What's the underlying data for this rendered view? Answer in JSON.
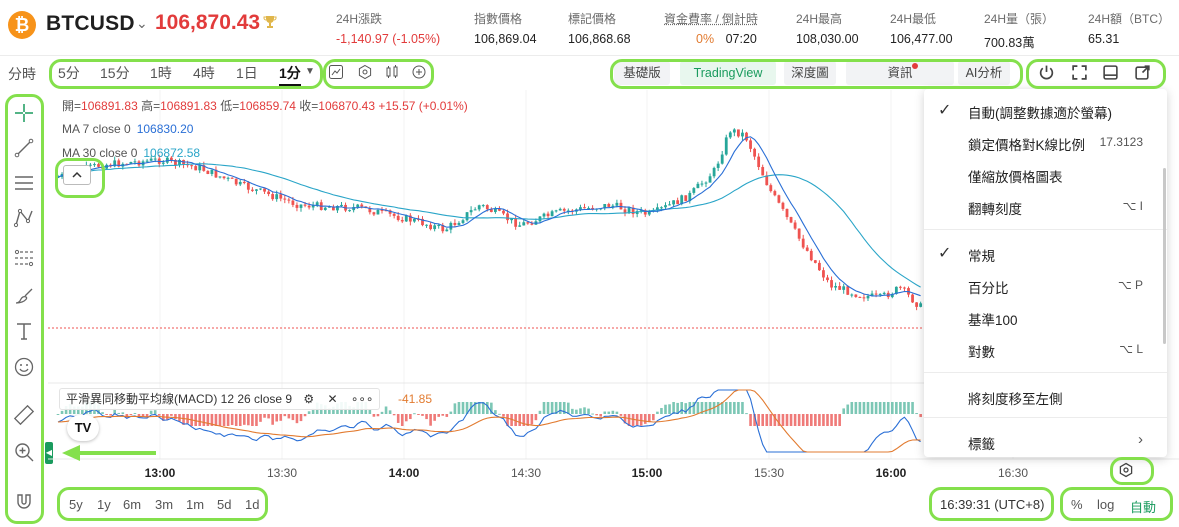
{
  "header": {
    "logo_glyph": "₿",
    "symbol": "BTCUSD",
    "last_price": "106,870.43",
    "stats": [
      {
        "label": "24H漲跌",
        "value": "-1,140.97 (-1.05%)",
        "color": "#e23b3b"
      },
      {
        "label": "指數價格",
        "value": "106,869.04"
      },
      {
        "label": "標記價格",
        "value": "106,868.68"
      },
      {
        "label": "資金費率 / 倒計時",
        "value_a": "0%",
        "value_b": "07:20",
        "color_a": "#e27b30"
      },
      {
        "label": "24H最高",
        "value": "108,030.00"
      },
      {
        "label": "24H最低",
        "value": "106,477.00"
      },
      {
        "label": "24H量（張）",
        "value": "700.83萬"
      },
      {
        "label": "24H額（BTC）",
        "value": "65.31"
      }
    ]
  },
  "toolbar": {
    "timeframe_label": "分時",
    "intervals": [
      "5分",
      "15分",
      "1時",
      "4時",
      "1日",
      "1分"
    ],
    "active_interval": "1分",
    "view_tabs": [
      "基礎版",
      "TradingView",
      "深度圖",
      "資訊",
      "AI分析"
    ],
    "active_view": "TradingView"
  },
  "legend": {
    "ohlc": {
      "open_label": "開=",
      "open": "106891.83",
      "high_label": "高=",
      "high": "106891.83",
      "low_label": "低=",
      "low": "106859.74",
      "close_label": "收=",
      "close": "106870.43",
      "change": "+15.57 (+0.01%)"
    },
    "ma7": {
      "label": "MA 7 close 0",
      "value": "106830.20"
    },
    "ma30": {
      "label": "MA 30 close 0",
      "value": "106872.58"
    }
  },
  "macd": {
    "title": "平滑異同移動平均線(MACD) 12 26 close 9",
    "value": "-41.85",
    "more": "∘∘∘"
  },
  "tv_logo": "TV",
  "time_axis": [
    "13:00",
    "13:30",
    "14:00",
    "14:30",
    "15:00",
    "15:30",
    "16:00",
    "16:30"
  ],
  "time_axis_bold": [
    "13:00",
    "14:00",
    "15:00",
    "16:00"
  ],
  "range_buttons": [
    "5y",
    "1y",
    "6m",
    "3m",
    "1m",
    "5d",
    "1d"
  ],
  "clock": "16:39:31 (UTC+8)",
  "scale_buttons": [
    "%",
    "log",
    "自動"
  ],
  "menu": {
    "items": [
      {
        "label": "自動(調整數據適於螢幕)",
        "checked": true,
        "shortcut": ""
      },
      {
        "label": "鎖定價格對K線比例",
        "checked": false,
        "shortcut": "17.3123"
      },
      {
        "label": "僅縮放價格圖表",
        "checked": false,
        "shortcut": ""
      },
      {
        "label": "翻轉刻度",
        "checked": false,
        "shortcut": "⌥ I"
      },
      {
        "label": "常規",
        "checked": true,
        "shortcut": ""
      },
      {
        "label": "百分比",
        "checked": false,
        "shortcut": "⌥ P"
      },
      {
        "label": "基準100",
        "checked": false,
        "shortcut": ""
      },
      {
        "label": "對數",
        "checked": false,
        "shortcut": "⌥ L"
      },
      {
        "label": "將刻度移至左側",
        "checked": false,
        "shortcut": ""
      },
      {
        "label": "標籤",
        "checked": false,
        "shortcut": "›"
      }
    ]
  },
  "colors": {
    "up": "#26a69a",
    "down": "#ef5350",
    "accent": "#1a9b5e",
    "highlight": "#84e04c",
    "ma7": "#2a6fd6",
    "ma30": "#2aa5c8",
    "macd_line": "#2a6fd6",
    "signal_line": "#e27b30"
  },
  "icons": {
    "gear": "⚙",
    "power": "⏻",
    "fullscreen": "⛶",
    "close": "✕",
    "chevron_down": "⌄",
    "collapse": "^"
  }
}
